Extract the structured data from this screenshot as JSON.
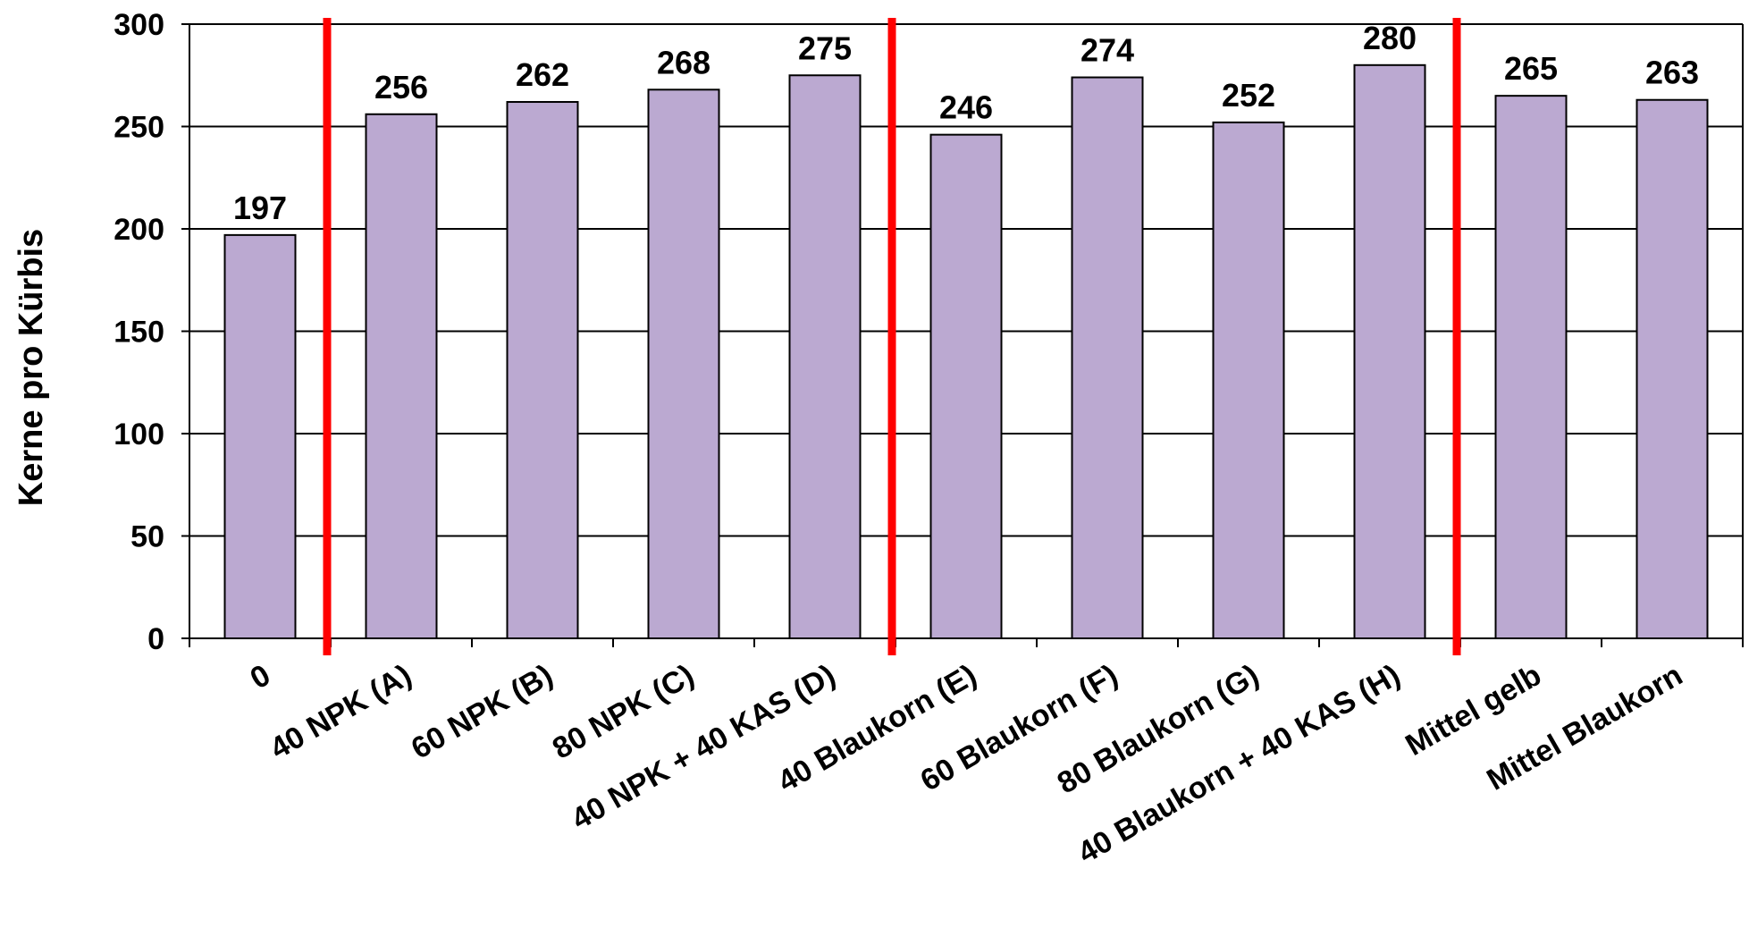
{
  "chart_data": {
    "type": "bar",
    "categories": [
      "0",
      "40 NPK (A)",
      "60 NPK (B)",
      "80 NPK (C)",
      "40 NPK + 40 KAS (D)",
      "40 Blaukorn (E)",
      "60 Blaukorn (F)",
      "80 Blaukorn (G)",
      "40 Blaukorn + 40 KAS (H)",
      "Mittel gelb",
      "Mittel Blaukorn"
    ],
    "values": [
      197,
      256,
      262,
      268,
      275,
      246,
      274,
      252,
      280,
      265,
      263
    ],
    "data_labels": [
      "197",
      "256",
      "262",
      "268",
      "275",
      "246",
      "274",
      "252",
      "280",
      "265",
      "263"
    ],
    "title": "",
    "xlabel": "",
    "ylabel": "Kerne pro Kürbis",
    "ylim": [
      0,
      300
    ],
    "yticks": [
      "0",
      "50",
      "100",
      "150",
      "200",
      "250",
      "300"
    ],
    "grid": true,
    "legend": "none",
    "colors": {
      "bar_fill": "#BBA9D1",
      "bar_stroke": "#000000",
      "gridline": "#000000",
      "separator": "#FF0000",
      "background": "#FFFFFF"
    },
    "separator_after_category_index": [
      0,
      4,
      8
    ]
  }
}
